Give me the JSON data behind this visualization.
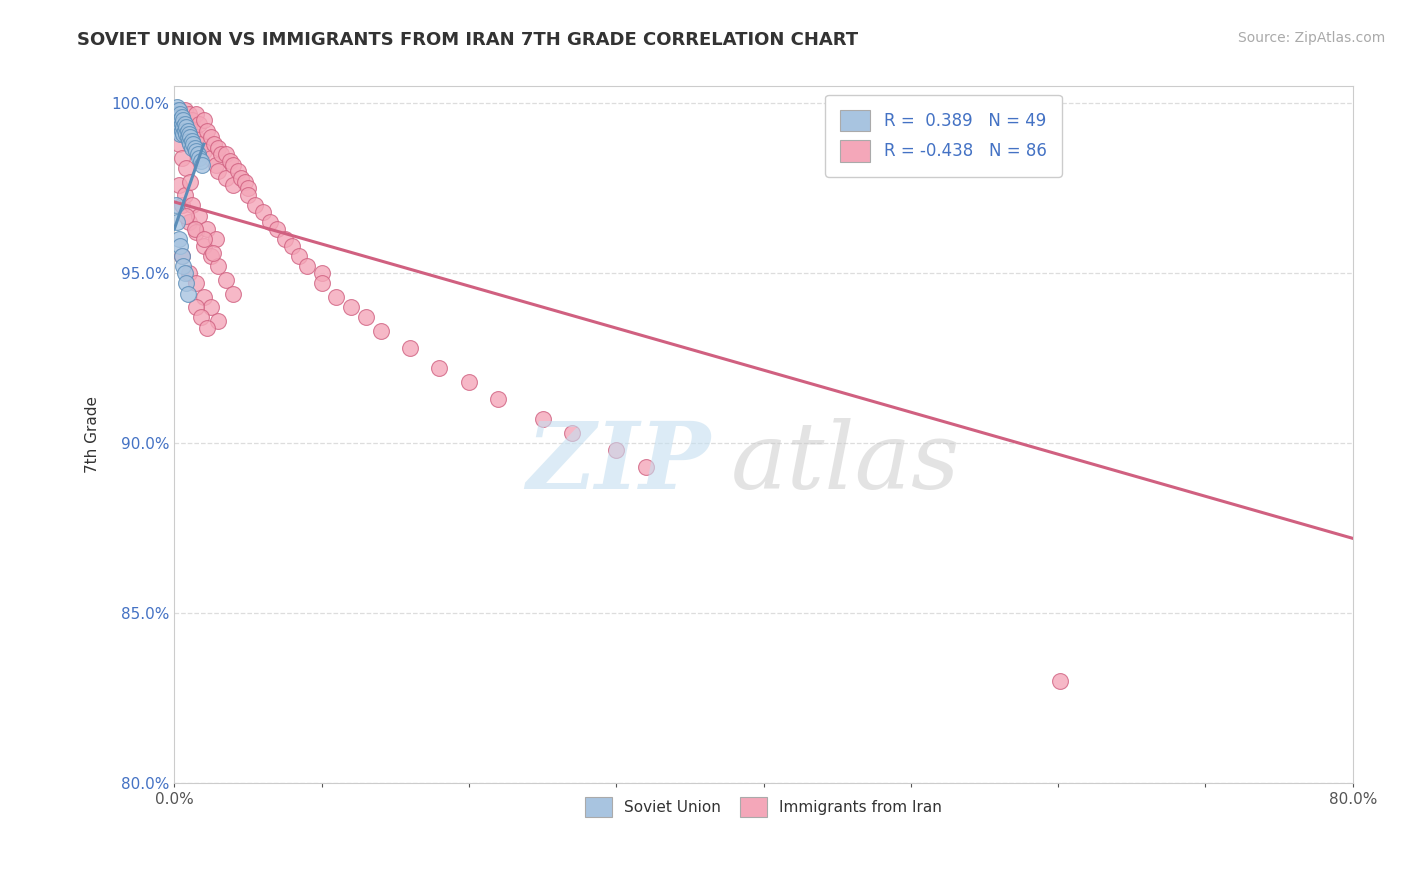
{
  "title": "SOVIET UNION VS IMMIGRANTS FROM IRAN 7TH GRADE CORRELATION CHART",
  "source_text": "Source: ZipAtlas.com",
  "ylabel": "7th Grade",
  "x_min": 0.0,
  "x_max": 0.8,
  "y_min": 0.8,
  "y_max": 1.005,
  "x_ticks": [
    0.0,
    0.1,
    0.2,
    0.3,
    0.4,
    0.5,
    0.6,
    0.7,
    0.8
  ],
  "x_tick_labels": [
    "0.0%",
    "",
    "",
    "",
    "",
    "",
    "",
    "",
    "80.0%"
  ],
  "y_ticks": [
    0.8,
    0.85,
    0.9,
    0.95,
    1.0
  ],
  "y_tick_labels": [
    "80.0%",
    "85.0%",
    "90.0%",
    "95.0%",
    "100.0%"
  ],
  "legend_label1": "Soviet Union",
  "legend_label2": "Immigrants from Iran",
  "r1": 0.389,
  "n1": 49,
  "r2": -0.438,
  "n2": 86,
  "color_blue_fill": "#a8c4e0",
  "color_pink_fill": "#f4a7b9",
  "color_blue_edge": "#5b8db8",
  "color_pink_edge": "#d06080",
  "color_blue_line": "#5b8db8",
  "color_pink_line": "#d06080",
  "background_color": "#ffffff",
  "grid_color": "#dddddd",
  "pink_line_x": [
    0.0,
    0.8
  ],
  "pink_line_y": [
    0.971,
    0.872
  ],
  "blue_line_x": [
    0.0,
    0.02
  ],
  "blue_line_y": [
    0.963,
    0.988
  ],
  "blue_scatter_x": [
    0.001,
    0.001,
    0.001,
    0.002,
    0.002,
    0.002,
    0.002,
    0.003,
    0.003,
    0.003,
    0.003,
    0.004,
    0.004,
    0.004,
    0.004,
    0.005,
    0.005,
    0.005,
    0.006,
    0.006,
    0.006,
    0.007,
    0.007,
    0.008,
    0.008,
    0.009,
    0.009,
    0.01,
    0.01,
    0.011,
    0.011,
    0.012,
    0.012,
    0.013,
    0.014,
    0.015,
    0.016,
    0.017,
    0.018,
    0.019,
    0.001,
    0.002,
    0.003,
    0.004,
    0.005,
    0.006,
    0.007,
    0.008,
    0.009
  ],
  "blue_scatter_y": [
    0.998,
    0.996,
    0.994,
    0.999,
    0.997,
    0.995,
    0.993,
    0.998,
    0.996,
    0.994,
    0.992,
    0.997,
    0.995,
    0.993,
    0.991,
    0.996,
    0.994,
    0.992,
    0.995,
    0.993,
    0.991,
    0.994,
    0.992,
    0.993,
    0.991,
    0.992,
    0.99,
    0.991,
    0.989,
    0.99,
    0.988,
    0.989,
    0.987,
    0.988,
    0.987,
    0.986,
    0.985,
    0.984,
    0.983,
    0.982,
    0.97,
    0.965,
    0.96,
    0.958,
    0.955,
    0.952,
    0.95,
    0.947,
    0.944
  ],
  "pink_scatter_x": [
    0.003,
    0.005,
    0.007,
    0.008,
    0.01,
    0.01,
    0.012,
    0.013,
    0.015,
    0.015,
    0.017,
    0.018,
    0.02,
    0.02,
    0.022,
    0.025,
    0.025,
    0.027,
    0.028,
    0.03,
    0.03,
    0.032,
    0.035,
    0.035,
    0.038,
    0.04,
    0.04,
    0.043,
    0.045,
    0.048,
    0.05,
    0.05,
    0.055,
    0.06,
    0.065,
    0.07,
    0.075,
    0.08,
    0.085,
    0.09,
    0.1,
    0.1,
    0.11,
    0.12,
    0.13,
    0.14,
    0.16,
    0.18,
    0.2,
    0.22,
    0.25,
    0.27,
    0.3,
    0.32,
    0.005,
    0.01,
    0.015,
    0.02,
    0.025,
    0.03,
    0.035,
    0.04,
    0.005,
    0.01,
    0.015,
    0.02,
    0.025,
    0.03,
    0.003,
    0.007,
    0.012,
    0.017,
    0.022,
    0.028,
    0.008,
    0.014,
    0.02,
    0.026,
    0.003,
    0.005,
    0.008,
    0.011,
    0.601,
    0.015,
    0.018,
    0.022
  ],
  "pink_scatter_y": [
    0.998,
    0.996,
    0.998,
    0.994,
    0.997,
    0.993,
    0.995,
    0.992,
    0.997,
    0.99,
    0.994,
    0.988,
    0.995,
    0.986,
    0.992,
    0.99,
    0.984,
    0.988,
    0.982,
    0.987,
    0.98,
    0.985,
    0.985,
    0.978,
    0.983,
    0.982,
    0.976,
    0.98,
    0.978,
    0.977,
    0.975,
    0.973,
    0.97,
    0.968,
    0.965,
    0.963,
    0.96,
    0.958,
    0.955,
    0.952,
    0.95,
    0.947,
    0.943,
    0.94,
    0.937,
    0.933,
    0.928,
    0.922,
    0.918,
    0.913,
    0.907,
    0.903,
    0.898,
    0.893,
    0.97,
    0.965,
    0.962,
    0.958,
    0.955,
    0.952,
    0.948,
    0.944,
    0.955,
    0.95,
    0.947,
    0.943,
    0.94,
    0.936,
    0.976,
    0.973,
    0.97,
    0.967,
    0.963,
    0.96,
    0.967,
    0.963,
    0.96,
    0.956,
    0.988,
    0.984,
    0.981,
    0.977,
    0.83,
    0.94,
    0.937,
    0.934
  ]
}
